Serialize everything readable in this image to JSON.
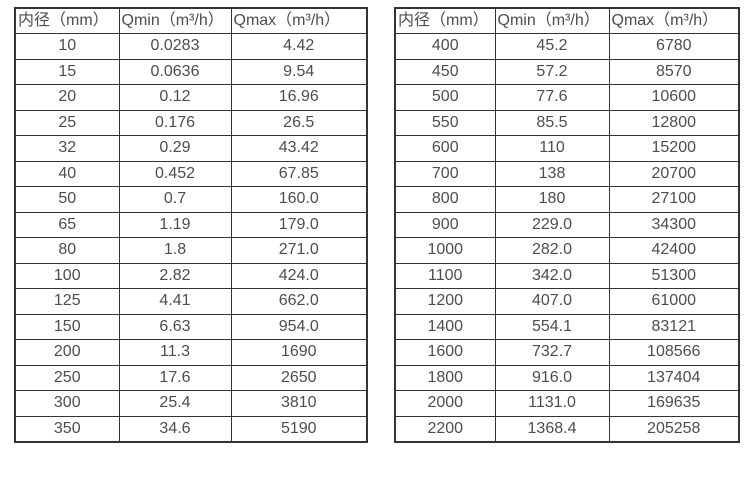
{
  "colors": {
    "border": "#333333",
    "text": "#4d4d4d",
    "background": "#ffffff"
  },
  "tables": [
    {
      "name": "flow-spec-table-small-diameters",
      "headers": [
        "内径（mm）",
        "Qmin（m³/h）",
        "Qmax（m³/h）"
      ],
      "rows": [
        [
          "10",
          "0.0283",
          "4.42"
        ],
        [
          "15",
          "0.0636",
          "9.54"
        ],
        [
          "20",
          "0.12",
          "16.96"
        ],
        [
          "25",
          "0.176",
          "26.5"
        ],
        [
          "32",
          "0.29",
          "43.42"
        ],
        [
          "40",
          "0.452",
          "67.85"
        ],
        [
          "50",
          "0.7",
          "160.0"
        ],
        [
          "65",
          "1.19",
          "179.0"
        ],
        [
          "80",
          "1.8",
          "271.0"
        ],
        [
          "100",
          "2.82",
          "424.0"
        ],
        [
          "125",
          "4.41",
          "662.0"
        ],
        [
          "150",
          "6.63",
          "954.0"
        ],
        [
          "200",
          "11.3",
          "1690"
        ],
        [
          "250",
          "17.6",
          "2650"
        ],
        [
          "300",
          "25.4",
          "3810"
        ],
        [
          "350",
          "34.6",
          "5190"
        ]
      ]
    },
    {
      "name": "flow-spec-table-large-diameters",
      "headers": [
        "内径（mm）",
        "Qmin（m³/h）",
        "Qmax（m³/h）"
      ],
      "rows": [
        [
          "400",
          "45.2",
          "6780"
        ],
        [
          "450",
          "57.2",
          "8570"
        ],
        [
          "500",
          "77.6",
          "10600"
        ],
        [
          "550",
          "85.5",
          "12800"
        ],
        [
          "600",
          "110",
          "15200"
        ],
        [
          "700",
          "138",
          "20700"
        ],
        [
          "800",
          "180",
          "27100"
        ],
        [
          "900",
          "229.0",
          "34300"
        ],
        [
          "1000",
          "282.0",
          "42400"
        ],
        [
          "1100",
          "342.0",
          "51300"
        ],
        [
          "1200",
          "407.0",
          "61000"
        ],
        [
          "1400",
          "554.1",
          "83121"
        ],
        [
          "1600",
          "732.7",
          "108566"
        ],
        [
          "1800",
          "916.0",
          "137404"
        ],
        [
          "2000",
          "1131.0",
          "169635"
        ],
        [
          "2200",
          "1368.4",
          "205258"
        ]
      ]
    }
  ]
}
